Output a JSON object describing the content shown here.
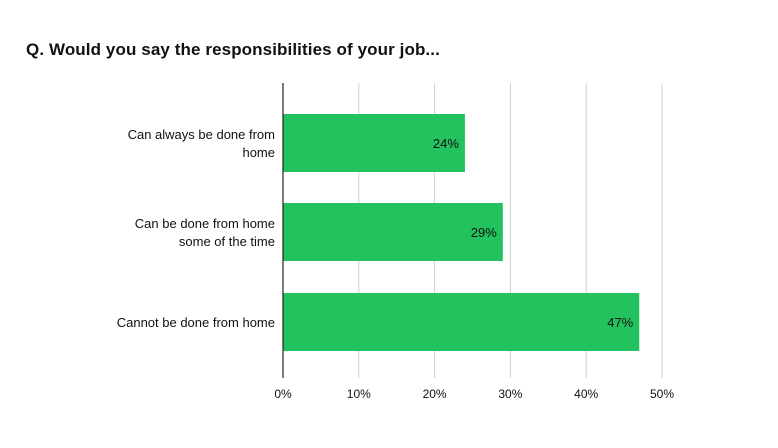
{
  "title": {
    "prefix": "Q.",
    "text": "Would you say the responsibilities of your job..."
  },
  "chart_data": {
    "type": "bar",
    "orientation": "horizontal",
    "categories": [
      [
        "Can always be done from",
        "home"
      ],
      [
        "Can be done from home",
        "some of the time"
      ],
      [
        "Cannot be done from home"
      ]
    ],
    "values": [
      24,
      29,
      47
    ],
    "data_labels": [
      "24%",
      "29%",
      "47%"
    ],
    "xlim": [
      0,
      50
    ],
    "x_ticks": [
      0,
      10,
      20,
      30,
      40,
      50
    ],
    "x_tick_labels": [
      "0%",
      "10%",
      "20%",
      "30%",
      "40%",
      "50%"
    ],
    "grid": true,
    "legend": "none",
    "bar_color": "#22c35e",
    "grid_color": "#d0d0d0",
    "axis_color": "#222222"
  }
}
